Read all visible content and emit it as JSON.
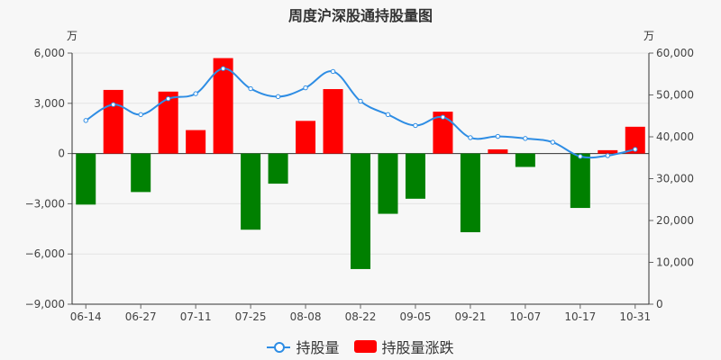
{
  "chart_data": {
    "type": "bar+line",
    "title": "周度沪深股通持股量图",
    "left_unit": "万",
    "right_unit": "万",
    "x_tick_labels": [
      "06-14",
      "06-27",
      "07-11",
      "07-25",
      "08-08",
      "08-22",
      "09-05",
      "09-21",
      "10-07",
      "10-17",
      "10-31"
    ],
    "left_axis": {
      "min": -9000,
      "max": 6000,
      "ticks": [
        "6,000",
        "3,000",
        "0",
        "−3,000",
        "−6,000",
        "−9,000"
      ]
    },
    "right_axis": {
      "min": 0,
      "max": 60000,
      "ticks": [
        "60,000",
        "50,000",
        "40,000",
        "30,000",
        "20,000",
        "10,000",
        "0"
      ]
    },
    "series": [
      {
        "name": "持股量",
        "axis": "right",
        "color": "#2e8de4",
        "values": [
          43900,
          47700,
          45300,
          49100,
          50300,
          56300,
          51500,
          49600,
          51700,
          55600,
          48500,
          45300,
          42700,
          44700,
          39800,
          40100,
          39600,
          38700,
          35300,
          35500,
          37000
        ]
      },
      {
        "name": "持股量涨跌",
        "axis": "left",
        "color_up": "#ff0000",
        "color_down": "#008000",
        "values": [
          -3050,
          3800,
          -2300,
          3700,
          1400,
          5700,
          -4550,
          -1800,
          1950,
          3850,
          -6900,
          -3600,
          -2700,
          2500,
          -4700,
          250,
          -800,
          0,
          -3250,
          200,
          1600
        ]
      }
    ],
    "legend": [
      "持股量",
      "持股量涨跌"
    ],
    "legend_position": "bottom"
  }
}
